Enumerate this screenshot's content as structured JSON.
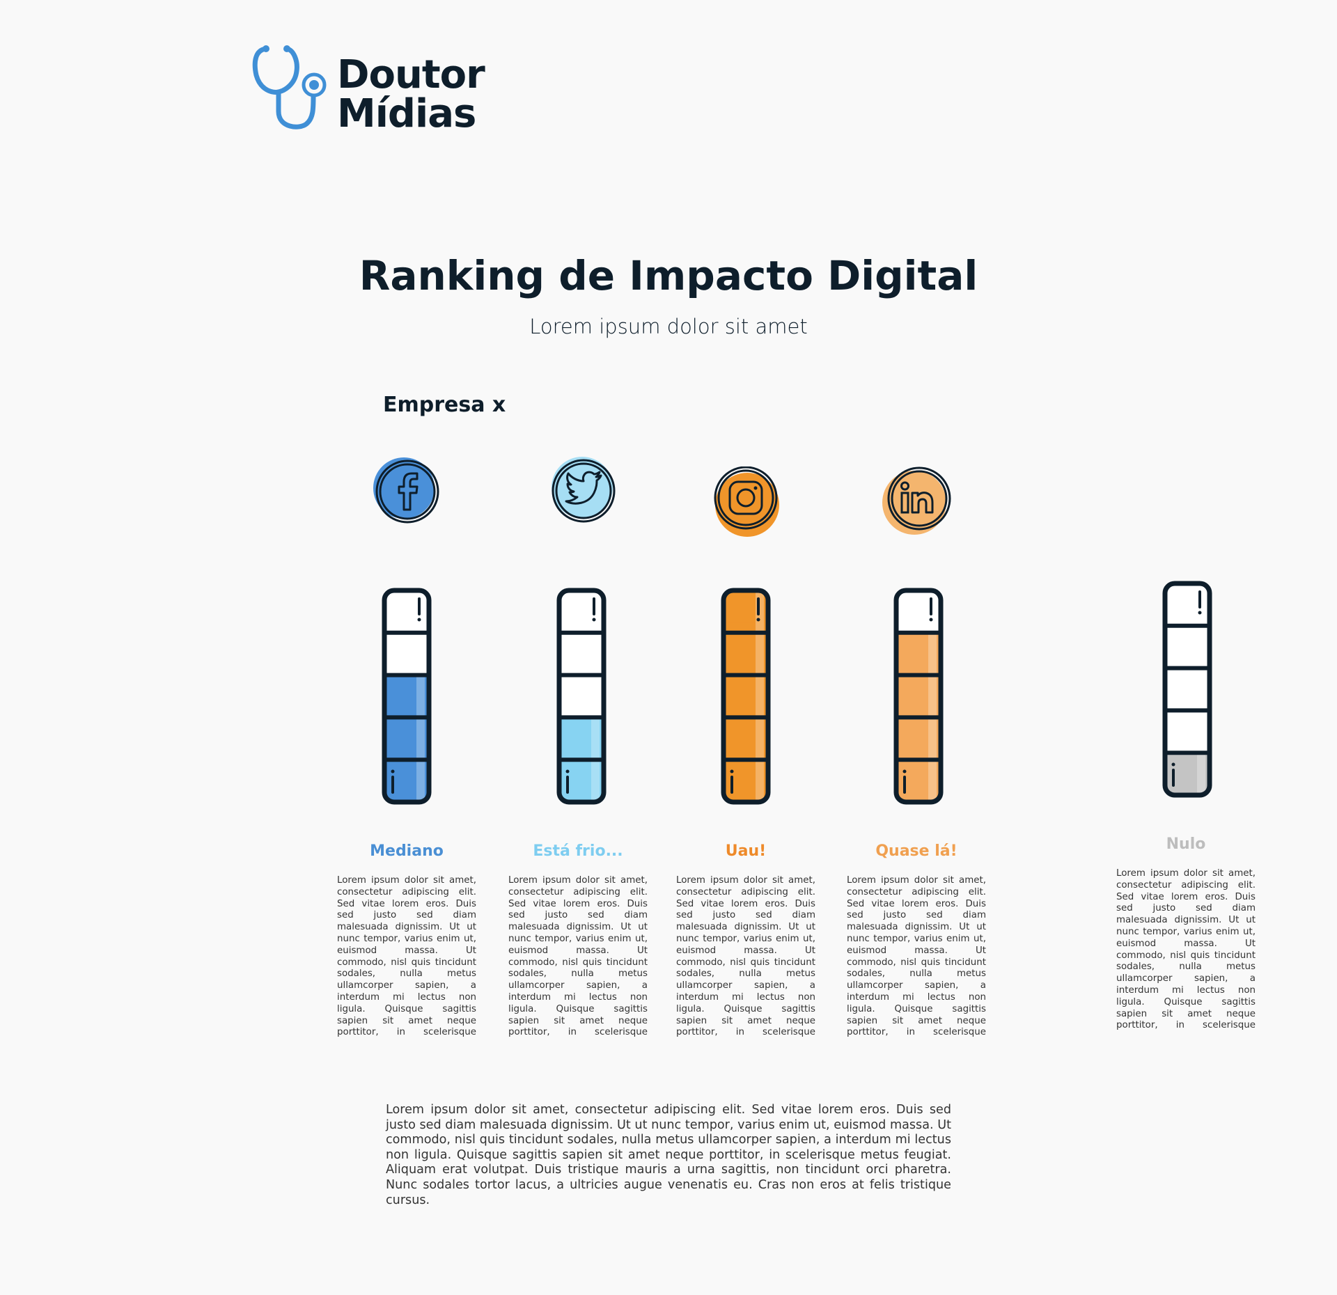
{
  "brand": {
    "name_line1": "Doutor",
    "name_line2": "Mídias",
    "logo_icon": "stethoscope-icon",
    "accent": "#3f8fd6",
    "ink": "#0e1e2b"
  },
  "header": {
    "title": "Ranking de Impacto Digital",
    "subtitle": "Lorem ipsum dolor sit amet"
  },
  "company": {
    "name": "Empresa x"
  },
  "networks": [
    {
      "id": "facebook",
      "icon": "facebook-icon",
      "status": "Mediano",
      "level": 3,
      "max_level": 5,
      "color": "#4a90d9",
      "status_color": "#4a8fd4",
      "description": "Lorem ipsum dolor sit amet, consectetur adipiscing elit. Sed vitae lorem eros. Duis sed justo sed diam malesuada dignissim. Ut ut nunc tempor, varius enim ut, euismod massa. Ut commodo, nisl quis tincidunt sodales, nulla metus ullamcorper sapien, a interdum mi lectus non ligula. Quisque sagittis sapien sit amet neque porttitor, in scelerisque metus feugiat. Aliquam erat volutpat. Duis"
    },
    {
      "id": "twitter",
      "icon": "twitter-icon",
      "status": "Está frio...",
      "level": 2,
      "max_level": 5,
      "color": "#87d3f2",
      "status_color": "#7ecdf0",
      "description": "Lorem ipsum dolor sit amet, consectetur adipiscing elit. Sed vitae lorem eros. Duis sed justo sed diam malesuada dignissim. Ut ut nunc tempor, varius enim ut, euismod massa. Ut commodo, nisl quis tincidunt sodales, nulla metus ullamcorper sapien, a interdum mi lectus non ligula. Quisque sagittis sapien sit amet neque porttitor, in scelerisque metus feugiat. Aliquam erat volutpat. Duis"
    },
    {
      "id": "instagram",
      "icon": "instagram-icon",
      "status": "Uau!",
      "level": 5,
      "max_level": 5,
      "color": "#f0952a",
      "status_color": "#ee8a2a",
      "description": "Lorem ipsum dolor sit amet, consectetur adipiscing elit. Sed vitae lorem eros. Duis sed justo sed diam malesuada dignissim. Ut ut nunc tempor, varius enim ut, euismod massa. Ut commodo, nisl quis tincidunt sodales, nulla metus ullamcorper sapien, a interdum mi lectus non ligula. Quisque sagittis sapien sit amet neque porttitor, in scelerisque metus feugiat. Aliquam erat volutpat. Duis"
    },
    {
      "id": "linkedin",
      "icon": "linkedin-icon",
      "status": "Quase lá!",
      "level": 4,
      "max_level": 5,
      "color": "#f4a95c",
      "status_color": "#f0a050",
      "description": "Lorem ipsum dolor sit amet, consectetur adipiscing elit. Sed vitae lorem eros. Duis sed justo sed diam malesuada dignissim. Ut ut nunc tempor, varius enim ut, euismod massa. Ut commodo, nisl quis tincidunt sodales, nulla metus ullamcorper sapien, a interdum mi lectus non ligula. Quisque sagittis sapien sit amet neque porttitor, in scelerisque metus feugiat. Aliquam erat volutpat. Duis"
    },
    {
      "id": "none",
      "icon": "",
      "status": "Nulo",
      "level": 1,
      "max_level": 5,
      "color": "#c4c4c4",
      "status_color": "#bdbdbd",
      "description": "Lorem ipsum dolor sit amet, consectetur adipiscing elit. Sed vitae lorem eros. Duis sed justo sed diam malesuada dignissim. Ut ut nunc tempor, varius enim ut, euismod massa. Ut commodo, nisl quis tincidunt sodales, nulla metus ullamcorper sapien, a interdum mi lectus non ligula. Quisque sagittis sapien sit amet neque porttitor, in scelerisque metus feugiat. Aliquam erat volutpat. Duis"
    }
  ],
  "footer": {
    "text": "Lorem ipsum dolor sit amet, consectetur adipiscing elit. Sed vitae lorem eros. Duis sed justo sed diam malesuada dignissim. Ut ut nunc tempor, varius enim ut, euismod massa. Ut commodo, nisl quis tincidunt sodales, nulla metus ullamcorper sapien, a interdum mi lectus non ligula. Quisque sagittis sapien sit amet neque porttitor, in scelerisque metus feugiat. Aliquam erat volutpat. Duis tristique mauris a urna sagittis, non tincidunt orci pharetra. Nunc sodales tortor lacus, a ultricies augue venenatis eu. Cras non eros at felis tristique cursus."
  }
}
